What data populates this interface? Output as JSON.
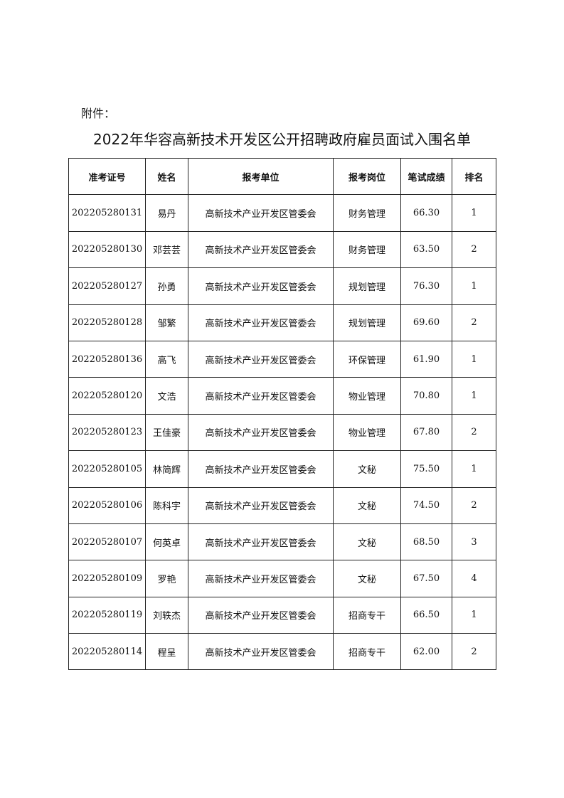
{
  "attachment_label": "附件：",
  "title": "2022年华容高新技术开发区公开招聘政府雇员面试入围名单",
  "table": {
    "headers": [
      "准考证号",
      "姓名",
      "报考单位",
      "报考岗位",
      "笔试成绩",
      "排名"
    ],
    "rows": [
      [
        "202205280131",
        "易丹",
        "高新技术产业开发区管委会",
        "财务管理",
        "66.30",
        "1"
      ],
      [
        "202205280130",
        "邓芸芸",
        "高新技术产业开发区管委会",
        "财务管理",
        "63.50",
        "2"
      ],
      [
        "202205280127",
        "孙勇",
        "高新技术产业开发区管委会",
        "规划管理",
        "76.30",
        "1"
      ],
      [
        "202205280128",
        "邹繁",
        "高新技术产业开发区管委会",
        "规划管理",
        "69.60",
        "2"
      ],
      [
        "202205280136",
        "高飞",
        "高新技术产业开发区管委会",
        "环保管理",
        "61.90",
        "1"
      ],
      [
        "202205280120",
        "文浩",
        "高新技术产业开发区管委会",
        "物业管理",
        "70.80",
        "1"
      ],
      [
        "202205280123",
        "王佳豪",
        "高新技术产业开发区管委会",
        "物业管理",
        "67.80",
        "2"
      ],
      [
        "202205280105",
        "林简辉",
        "高新技术产业开发区管委会",
        "文秘",
        "75.50",
        "1"
      ],
      [
        "202205280106",
        "陈科宇",
        "高新技术产业开发区管委会",
        "文秘",
        "74.50",
        "2"
      ],
      [
        "202205280107",
        "何英卓",
        "高新技术产业开发区管委会",
        "文秘",
        "68.50",
        "3"
      ],
      [
        "202205280109",
        "罗艳",
        "高新技术产业开发区管委会",
        "文秘",
        "67.50",
        "4"
      ],
      [
        "202205280119",
        "刘轶杰",
        "高新技术产业开发区管委会",
        "招商专干",
        "66.50",
        "1"
      ],
      [
        "202205280114",
        "程呈",
        "高新技术产业开发区管委会",
        "招商专干",
        "62.00",
        "2"
      ]
    ]
  }
}
